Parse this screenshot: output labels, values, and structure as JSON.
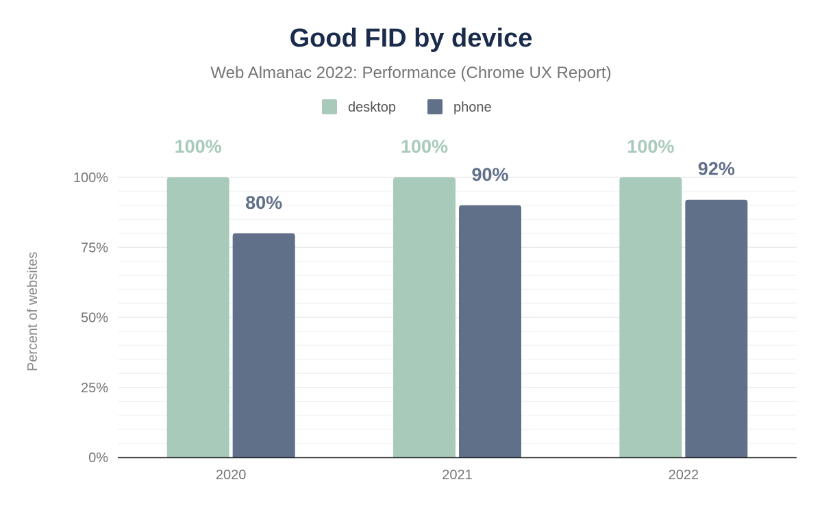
{
  "chart_data": {
    "type": "bar",
    "title": "Good FID by device",
    "subtitle": "Web Almanac 2022: Performance (Chrome UX Report)",
    "categories": [
      "2020",
      "2021",
      "2022"
    ],
    "series": [
      {
        "name": "desktop",
        "values": [
          100,
          100,
          100
        ],
        "labels": [
          "100%",
          "100%",
          "100%"
        ],
        "color": "#a8cabb"
      },
      {
        "name": "phone",
        "values": [
          80,
          90,
          92
        ],
        "labels": [
          "80%",
          "90%",
          "92%"
        ],
        "color": "#617089"
      }
    ],
    "xlabel": "",
    "ylabel": "Percent of websites",
    "ylim": [
      0,
      100
    ],
    "yticks": [
      "0%",
      "25%",
      "50%",
      "75%",
      "100%"
    ],
    "grid": true,
    "legend": "top-center"
  }
}
